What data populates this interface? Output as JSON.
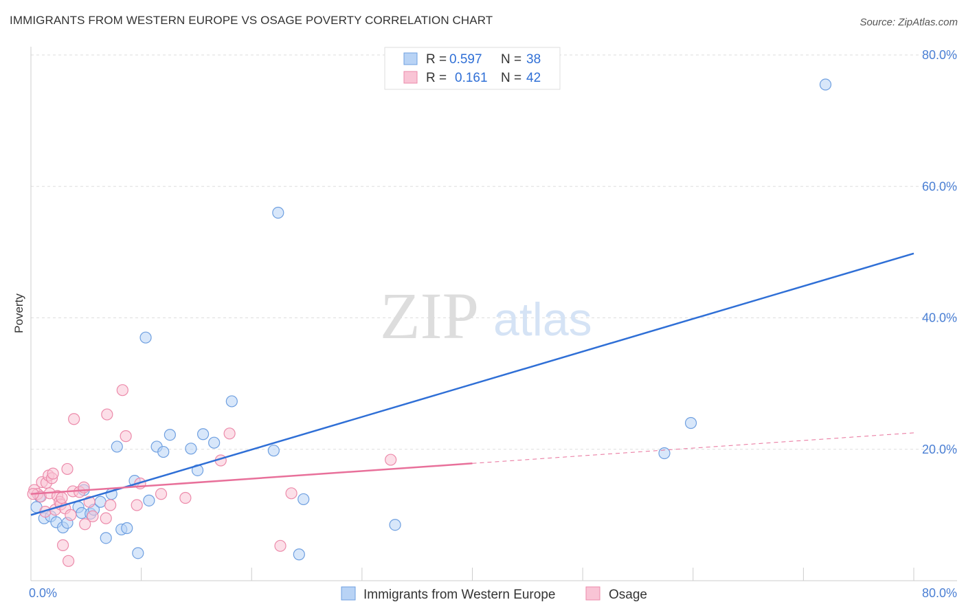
{
  "title": "IMMIGRANTS FROM WESTERN EUROPE VS OSAGE POVERTY CORRELATION CHART",
  "source": "Source: ZipAtlas.com",
  "watermark": {
    "zip": "ZIP",
    "atlas": "atlas"
  },
  "colors": {
    "blue_fill": "#b8d3f5",
    "blue_stroke": "#6e9fe0",
    "blue_line": "#2f6fd6",
    "pink_fill": "#f9c4d5",
    "pink_stroke": "#ec8aaa",
    "pink_line": "#e8709a",
    "grid": "#dddddd",
    "axis_text": "#4a7fd4"
  },
  "legend": {
    "r_label": "R =",
    "n_label": "N =",
    "rows": [
      {
        "series": "blue",
        "r": "0.597",
        "n": "38"
      },
      {
        "series": "pink",
        "r": "0.161",
        "n": "42"
      }
    ]
  },
  "chart_data": {
    "type": "scatter",
    "title": "IMMIGRANTS FROM WESTERN EUROPE VS OSAGE POVERTY CORRELATION CHART",
    "xlabel": "",
    "ylabel": "Poverty",
    "xlim": [
      0,
      80
    ],
    "ylim": [
      0,
      80
    ],
    "x_tick_labels": [
      "0.0%",
      "80.0%"
    ],
    "y_ticks": [
      20,
      40,
      60,
      80
    ],
    "y_tick_labels": [
      "20.0%",
      "40.0%",
      "60.0%",
      "80.0%"
    ],
    "grid": true,
    "legend_position": "top-center",
    "series": [
      {
        "name": "Immigrants from Western Europe",
        "color": "blue",
        "r": 0.597,
        "n": 38,
        "trend": {
          "x0": 0,
          "y0": 10.0,
          "x1": 80,
          "y1": 49.8,
          "dashed_from": null
        },
        "points": [
          [
            0.5,
            11.2
          ],
          [
            1.2,
            9.5
          ],
          [
            1.8,
            9.8
          ],
          [
            2.3,
            8.9
          ],
          [
            2.9,
            8.1
          ],
          [
            3.3,
            8.8
          ],
          [
            4.3,
            11.2
          ],
          [
            4.6,
            10.3
          ],
          [
            4.8,
            13.8
          ],
          [
            5.4,
            10.2
          ],
          [
            5.7,
            10.8
          ],
          [
            6.3,
            12.0
          ],
          [
            6.8,
            6.5
          ],
          [
            7.3,
            13.2
          ],
          [
            7.8,
            20.4
          ],
          [
            8.2,
            7.8
          ],
          [
            8.7,
            8.0
          ],
          [
            9.4,
            15.2
          ],
          [
            9.7,
            4.2
          ],
          [
            10.4,
            37.0
          ],
          [
            10.7,
            12.2
          ],
          [
            11.4,
            20.4
          ],
          [
            12.0,
            19.6
          ],
          [
            12.6,
            22.2
          ],
          [
            14.5,
            20.1
          ],
          [
            15.1,
            16.8
          ],
          [
            15.6,
            22.3
          ],
          [
            16.6,
            21.0
          ],
          [
            18.2,
            27.3
          ],
          [
            22.0,
            19.8
          ],
          [
            22.4,
            56.0
          ],
          [
            24.3,
            4.0
          ],
          [
            24.7,
            12.4
          ],
          [
            33.0,
            8.5
          ],
          [
            57.4,
            19.4
          ],
          [
            59.8,
            24.0
          ],
          [
            72.0,
            75.5
          ],
          [
            0.8,
            12.8
          ]
        ]
      },
      {
        "name": "Osage",
        "color": "pink",
        "r": 0.161,
        "n": 42,
        "trend": {
          "x0": 0,
          "y0": 13.2,
          "x1": 80,
          "y1": 22.5,
          "dashed_from": 40
        },
        "points": [
          [
            0.3,
            13.8
          ],
          [
            0.6,
            13.2
          ],
          [
            0.9,
            12.8
          ],
          [
            1.0,
            15.0
          ],
          [
            1.3,
            10.5
          ],
          [
            1.4,
            14.9
          ],
          [
            1.6,
            16.0
          ],
          [
            1.7,
            13.3
          ],
          [
            1.9,
            15.6
          ],
          [
            2.0,
            16.3
          ],
          [
            2.2,
            10.8
          ],
          [
            2.4,
            12.9
          ],
          [
            2.6,
            12.0
          ],
          [
            2.7,
            11.6
          ],
          [
            2.8,
            12.6
          ],
          [
            2.9,
            5.4
          ],
          [
            3.1,
            11.0
          ],
          [
            3.3,
            17.0
          ],
          [
            3.4,
            3.0
          ],
          [
            3.6,
            10.0
          ],
          [
            3.8,
            13.6
          ],
          [
            3.9,
            24.6
          ],
          [
            4.4,
            13.5
          ],
          [
            4.8,
            14.2
          ],
          [
            4.9,
            8.6
          ],
          [
            5.3,
            12.0
          ],
          [
            5.6,
            9.8
          ],
          [
            6.8,
            9.5
          ],
          [
            6.9,
            25.3
          ],
          [
            7.2,
            11.5
          ],
          [
            8.3,
            29.0
          ],
          [
            8.6,
            22.0
          ],
          [
            9.6,
            11.5
          ],
          [
            9.9,
            14.8
          ],
          [
            11.8,
            13.2
          ],
          [
            14.0,
            12.6
          ],
          [
            17.2,
            18.3
          ],
          [
            18.0,
            22.4
          ],
          [
            22.6,
            5.3
          ],
          [
            23.6,
            13.3
          ],
          [
            32.6,
            18.4
          ],
          [
            0.2,
            13.2
          ]
        ]
      }
    ]
  }
}
